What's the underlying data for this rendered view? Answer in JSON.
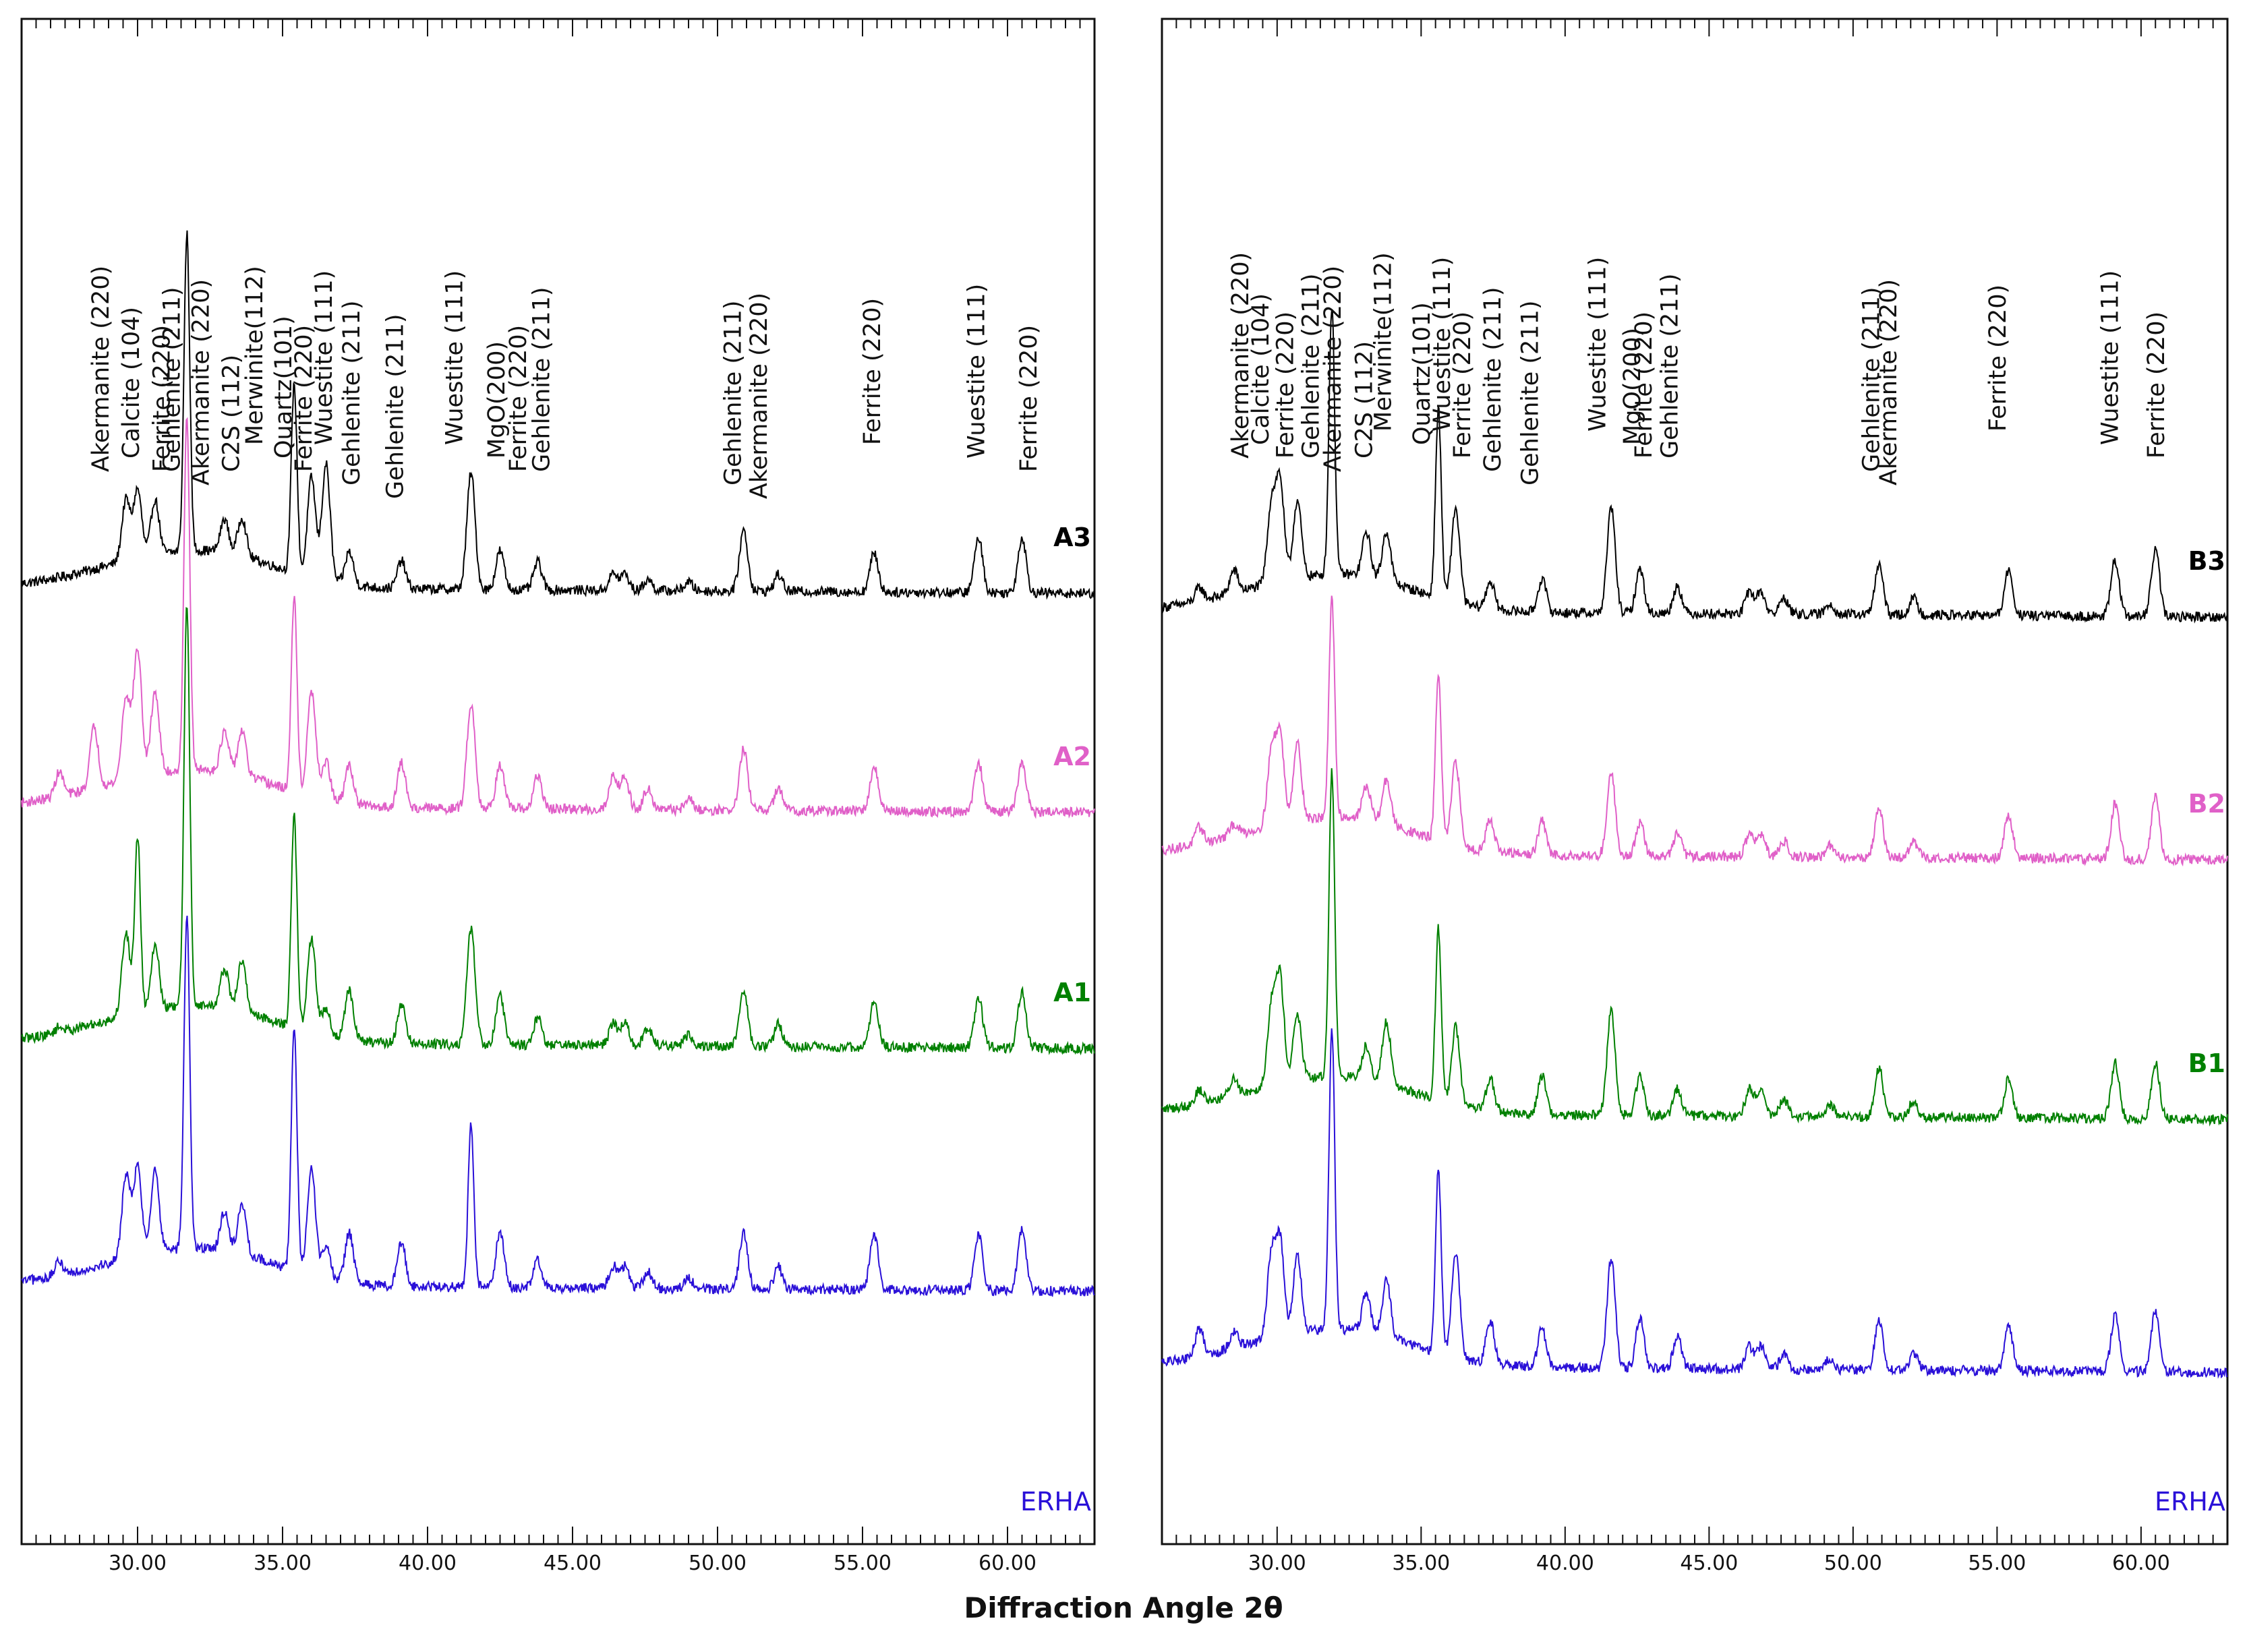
{
  "figure": {
    "xlabel": "Diffraction Angle 2θ"
  },
  "chart_data": [
    {
      "type": "line",
      "panel": "A",
      "xlim": [
        26,
        63
      ],
      "xticks": [
        30,
        35,
        40,
        45,
        50,
        55,
        60
      ],
      "xtick_labels": [
        "30.00",
        "35.00",
        "40.00",
        "45.00",
        "50.00",
        "55.00",
        "60.00"
      ],
      "xlabel": "Diffraction Angle 2θ",
      "ylabel": "",
      "series": [
        {
          "name": "A3",
          "color": "#000000",
          "label_position": "right"
        },
        {
          "name": "A2",
          "color": "#e060c8",
          "label_position": "right"
        },
        {
          "name": "A1",
          "color": "#008000",
          "label_position": "right"
        },
        {
          "name": "ERHA",
          "color": "#2a10d8",
          "label_position": "right-bottom"
        }
      ],
      "peaks": [
        {
          "x": 27.3,
          "h": [
            0,
            0.22,
            0.05,
            0.12
          ]
        },
        {
          "x": 28.5,
          "h": [
            0,
            0.55,
            0,
            0
          ]
        },
        {
          "x": 29.6,
          "h": [
            0.55,
            0.75,
            0.75,
            0.75
          ]
        },
        {
          "x": 30.0,
          "h": [
            0.62,
            1.15,
            1.6,
            0.8
          ]
        },
        {
          "x": 30.6,
          "h": [
            0.5,
            0.75,
            0.6,
            0.75
          ]
        },
        {
          "x": 31.7,
          "h": [
            2.85,
            3.2,
            3.6,
            3.0
          ]
        },
        {
          "x": 33.0,
          "h": [
            0.3,
            0.35,
            0.35,
            0.35
          ]
        },
        {
          "x": 33.6,
          "h": [
            0.35,
            0.4,
            0.45,
            0.45
          ]
        },
        {
          "x": 35.4,
          "h": [
            1.7,
            1.75,
            1.9,
            2.2
          ]
        },
        {
          "x": 36.0,
          "h": [
            0.9,
            0.95,
            0.85,
            0.95
          ]
        },
        {
          "x": 36.5,
          "h": [
            1.05,
            0.35,
            0.25,
            0.3
          ]
        },
        {
          "x": 37.3,
          "h": [
            0.3,
            0.35,
            0.45,
            0.45
          ]
        },
        {
          "x": 39.1,
          "h": [
            0.25,
            0.4,
            0.35,
            0.4
          ]
        },
        {
          "x": 41.5,
          "h": [
            1.05,
            0.95,
            1.05,
            1.45
          ]
        },
        {
          "x": 42.5,
          "h": [
            0.35,
            0.4,
            0.45,
            0.5
          ]
        },
        {
          "x": 43.8,
          "h": [
            0.25,
            0.3,
            0.25,
            0.25
          ]
        },
        {
          "x": 46.4,
          "h": [
            0.15,
            0.3,
            0.2,
            0.2
          ]
        },
        {
          "x": 46.8,
          "h": [
            0.15,
            0.3,
            0.2,
            0.2
          ]
        },
        {
          "x": 47.6,
          "h": [
            0.1,
            0.2,
            0.15,
            0.15
          ]
        },
        {
          "x": 49.0,
          "h": [
            0.08,
            0.1,
            0.1,
            0.1
          ]
        },
        {
          "x": 50.9,
          "h": [
            0.55,
            0.55,
            0.5,
            0.5
          ]
        },
        {
          "x": 52.1,
          "h": [
            0.15,
            0.2,
            0.2,
            0.2
          ]
        },
        {
          "x": 55.4,
          "h": [
            0.35,
            0.4,
            0.4,
            0.5
          ]
        },
        {
          "x": 59.0,
          "h": [
            0.5,
            0.45,
            0.45,
            0.5
          ]
        },
        {
          "x": 60.5,
          "h": [
            0.5,
            0.45,
            0.5,
            0.55
          ]
        }
      ],
      "annotations": [
        {
          "text": "Akermanite (220)",
          "x": 29.0
        },
        {
          "text": "Calcite (104)",
          "x": 30.05
        },
        {
          "text": "Ferrite (220)",
          "x": 31.1
        },
        {
          "text": "Gehlenite (211)",
          "x": 31.45
        },
        {
          "text": "Akermanite (220)",
          "x": 32.45
        },
        {
          "text": "C2S (112)",
          "x": 33.5
        },
        {
          "text": "Merwinite(112)",
          "x": 34.3
        },
        {
          "text": "Quartz(101)",
          "x": 35.3
        },
        {
          "text": "Ferrite (220)",
          "x": 36.0
        },
        {
          "text": "Wuestite (111)",
          "x": 36.7
        },
        {
          "text": "Gehlenite (211)",
          "x": 37.65
        },
        {
          "text": "Gehlenite (211)",
          "x": 39.15
        },
        {
          "text": "Wuestite (111)",
          "x": 41.2
        },
        {
          "text": "MgO(200)",
          "x": 42.65
        },
        {
          "text": "Ferrite (220)",
          "x": 43.4
        },
        {
          "text": "Gehlenite (211)",
          "x": 44.2
        },
        {
          "text": "Gehlenite (211)",
          "x": 50.8
        },
        {
          "text": "Akermanite (220)",
          "x": 51.7
        },
        {
          "text": "Ferrite (220)",
          "x": 55.6
        },
        {
          "text": "Wuestite (111)",
          "x": 59.2
        },
        {
          "text": "Ferrite (220)",
          "x": 61.0
        }
      ]
    },
    {
      "type": "line",
      "panel": "B",
      "xlim": [
        26,
        63
      ],
      "xticks": [
        30,
        35,
        40,
        45,
        50,
        55,
        60
      ],
      "xtick_labels": [
        "30.00",
        "35.00",
        "40.00",
        "45.00",
        "50.00",
        "55.00",
        "60.00"
      ],
      "xlabel": "Diffraction Angle 2θ",
      "ylabel": "",
      "series": [
        {
          "name": "B3",
          "color": "#000000",
          "label_position": "right"
        },
        {
          "name": "B2",
          "color": "#e060c8",
          "label_position": "right"
        },
        {
          "name": "B1",
          "color": "#008000",
          "label_position": "right"
        },
        {
          "name": "ERHA",
          "color": "#2a10d8",
          "label_position": "right-bottom"
        }
      ],
      "peaks": [
        {
          "x": 27.3,
          "h": [
            0.12,
            0.15,
            0.12,
            0.25
          ]
        },
        {
          "x": 28.5,
          "h": [
            0.2,
            0.1,
            0.15,
            0.15
          ]
        },
        {
          "x": 29.8,
          "h": [
            0.7,
            0.65,
            0.7,
            0.75
          ]
        },
        {
          "x": 30.1,
          "h": [
            0.9,
            0.8,
            0.95,
            0.85
          ]
        },
        {
          "x": 30.7,
          "h": [
            0.7,
            0.7,
            0.6,
            0.7
          ]
        },
        {
          "x": 31.9,
          "h": [
            2.4,
            1.95,
            2.75,
            2.7
          ]
        },
        {
          "x": 33.1,
          "h": [
            0.4,
            0.3,
            0.3,
            0.35
          ]
        },
        {
          "x": 33.8,
          "h": [
            0.45,
            0.4,
            0.55,
            0.5
          ]
        },
        {
          "x": 35.6,
          "h": [
            1.7,
            1.5,
            1.55,
            1.65
          ]
        },
        {
          "x": 36.2,
          "h": [
            0.85,
            0.75,
            0.7,
            0.95
          ]
        },
        {
          "x": 37.4,
          "h": [
            0.25,
            0.3,
            0.3,
            0.4
          ]
        },
        {
          "x": 39.2,
          "h": [
            0.3,
            0.3,
            0.35,
            0.35
          ]
        },
        {
          "x": 41.6,
          "h": [
            0.95,
            0.75,
            0.95,
            1.0
          ]
        },
        {
          "x": 42.6,
          "h": [
            0.4,
            0.3,
            0.35,
            0.45
          ]
        },
        {
          "x": 43.9,
          "h": [
            0.25,
            0.2,
            0.25,
            0.3
          ]
        },
        {
          "x": 46.4,
          "h": [
            0.2,
            0.2,
            0.25,
            0.2
          ]
        },
        {
          "x": 46.8,
          "h": [
            0.2,
            0.2,
            0.25,
            0.2
          ]
        },
        {
          "x": 47.6,
          "h": [
            0.15,
            0.15,
            0.15,
            0.15
          ]
        },
        {
          "x": 49.2,
          "h": [
            0.1,
            0.1,
            0.1,
            0.1
          ]
        },
        {
          "x": 50.9,
          "h": [
            0.45,
            0.45,
            0.45,
            0.45
          ]
        },
        {
          "x": 52.1,
          "h": [
            0.15,
            0.15,
            0.15,
            0.15
          ]
        },
        {
          "x": 55.4,
          "h": [
            0.4,
            0.4,
            0.35,
            0.4
          ]
        },
        {
          "x": 59.1,
          "h": [
            0.5,
            0.5,
            0.5,
            0.5
          ]
        },
        {
          "x": 60.5,
          "h": [
            0.6,
            0.55,
            0.5,
            0.55
          ]
        }
      ],
      "annotations": [
        {
          "text": "Akermanite (220)",
          "x": 29.0
        },
        {
          "text": "Calcite (104)",
          "x": 29.7
        },
        {
          "text": "Ferrite (220)",
          "x": 30.55
        },
        {
          "text": "Gehlenite (211)",
          "x": 31.45
        },
        {
          "text": "Akermanite (220)",
          "x": 32.2
        },
        {
          "text": "C2S (112)",
          "x": 33.3
        },
        {
          "text": "Merwinite(112)",
          "x": 33.95
        },
        {
          "text": "Quartz(101)",
          "x": 35.3
        },
        {
          "text": "Ferrite (220)",
          "x": 36.7
        },
        {
          "text": "Wuestite (111)",
          "x": 36.0
        },
        {
          "text": "Gehlenite (211)",
          "x": 37.75
        },
        {
          "text": "Gehlenite (211)",
          "x": 39.05
        },
        {
          "text": "Wuestite (111)",
          "x": 41.4
        },
        {
          "text": "MgO(200)",
          "x": 42.6
        },
        {
          "text": "Ferrite (220)",
          "x": 43.0
        },
        {
          "text": "Gehlenite (211)",
          "x": 43.9
        },
        {
          "text": "Gehlenite (211)",
          "x": 50.9
        },
        {
          "text": "Akermanite (220)",
          "x": 51.5
        },
        {
          "text": "Ferrite (220)",
          "x": 55.3
        },
        {
          "text": "Wuestite (111)",
          "x": 59.2
        },
        {
          "text": "Ferrite (220)",
          "x": 60.8
        }
      ]
    }
  ]
}
